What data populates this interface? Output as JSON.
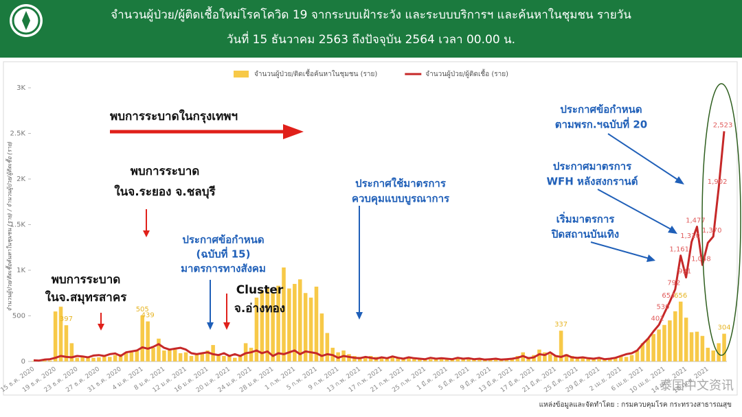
{
  "chart_data": {
    "type": "combo",
    "title": [
      "จำนวนผู้ป่วย/ผู้ติดเชื้อใหม่โรคโควิด 19 จากระบบเฝ้าระวัง และระบบบริการฯ และค้นหาในชุมชน รายวัน",
      "วันที่ 15 ธันวาคม 2563 ถึงปัจจุบัน 2564 เวลา 00.00 น."
    ],
    "ylabel": "จำนวนผู้ป่วย/ติดเชื้อค้นหาในชุมชน (ราย) / จำนวนผู้ป่วย/ผู้ติดเชื้อ (ราย)",
    "source": "แหล่งข้อมูลและจัดทำโดย : กรมควบคุมโรค กระทรวงสาธารณสุข",
    "watermark": "泰国中文资讯",
    "annotations": [
      [
        "พบการระบาดในกรุงเทพฯ"
      ],
      [
        "พบการระบาด",
        "ในจ.ระยอง จ.ชลบุรี"
      ],
      [
        "พบการระบาด",
        "ในจ.สมุทรสาคร"
      ],
      [
        "ประกาศข้อกำหนด",
        "(ฉบับที่ 15)",
        "มาตรการทางสังคม"
      ],
      [
        "Cluster",
        "จ.อ่างทอง"
      ],
      [
        "ประกาศใช้มาตรการ",
        "ควบคุมแบบบูรณาการ"
      ],
      [
        "ประกาศข้อกำหนด",
        "ตามพรก.ฯฉบับที่ 20"
      ],
      [
        "ประกาศมาตรการ",
        "WFH หลังสงกรานต์"
      ],
      [
        "เริ่มมาตรการ",
        "ปิดสถานบันเทิง"
      ]
    ],
    "categories": [
      "15 ธ.ค. 2020",
      null,
      null,
      null,
      "19 ธ.ค. 2020",
      null,
      null,
      null,
      "23 ธ.ค. 2020",
      null,
      null,
      null,
      "27 ธ.ค. 2020",
      null,
      null,
      null,
      "31 ธ.ค. 2020",
      null,
      null,
      null,
      "4 ม.ค. 2021",
      null,
      null,
      null,
      "8 ม.ค. 2021",
      null,
      null,
      null,
      "12 ม.ค. 2021",
      null,
      null,
      null,
      "16 ม.ค. 2021",
      null,
      null,
      null,
      "20 ม.ค. 2021",
      null,
      null,
      null,
      "24 ม.ค. 2021",
      null,
      null,
      null,
      "28 ม.ค. 2021",
      null,
      null,
      null,
      "1 ก.พ. 2021",
      null,
      null,
      null,
      "5 ก.พ. 2021",
      null,
      null,
      null,
      "9 ก.พ. 2021",
      null,
      null,
      null,
      "13 ก.พ. 2021",
      null,
      null,
      null,
      "17 ก.พ. 2021",
      null,
      null,
      null,
      "21 ก.พ. 2021",
      null,
      null,
      null,
      "25 ก.พ. 2021",
      null,
      null,
      null,
      "1 มี.ค. 2021",
      null,
      null,
      null,
      "5 มี.ค. 2021",
      null,
      null,
      null,
      "9 มี.ค. 2021",
      null,
      null,
      null,
      "13 มี.ค. 2021",
      null,
      null,
      null,
      "17 มี.ค. 2021",
      null,
      null,
      null,
      "21 มี.ค. 2021",
      null,
      null,
      null,
      "25 มี.ค. 2021",
      null,
      null,
      null,
      "29 มี.ค. 2021",
      null,
      null,
      null,
      "2 เม.ย. 2021",
      null,
      null,
      null,
      "6 เม.ย. 2021",
      null,
      null,
      null,
      "10 เม.ย. 2021",
      null,
      null,
      null,
      "14 เม.ย. 2021",
      null,
      null,
      null,
      "18 เม.ย. 2021",
      null,
      null,
      null
    ],
    "series": [
      {
        "name": "จำนวนผู้ป่วย/ติดเชื้อค้นหาในชุมชน (ราย)",
        "type": "bar",
        "color": "#f7c948",
        "label_color": "#e6b422",
        "values": [
          5,
          5,
          10,
          10,
          548,
          600,
          397,
          200,
          40,
          60,
          50,
          40,
          45,
          60,
          50,
          70,
          80,
          90,
          100,
          120,
          505,
          439,
          150,
          250,
          120,
          140,
          130,
          90,
          100,
          60,
          80,
          90,
          120,
          180,
          80,
          60,
          70,
          40,
          60,
          200,
          150,
          700,
          780,
          800,
          750,
          830,
          1030,
          800,
          850,
          900,
          750,
          700,
          820,
          526,
          312,
          150,
          100,
          120,
          80,
          60,
          50,
          40,
          60,
          50,
          40,
          45,
          50,
          40,
          35,
          40,
          30,
          35,
          30,
          25,
          40,
          30,
          30,
          25,
          35,
          30,
          25,
          30,
          20,
          25,
          30,
          20,
          25,
          20,
          30,
          60,
          100,
          50,
          70,
          130,
          100,
          80,
          60,
          337,
          80,
          60,
          45,
          40,
          30,
          25,
          30,
          20,
          25,
          40,
          60,
          50,
          70,
          120,
          200,
          250,
          300,
          350,
          400,
          450,
          550,
          656,
          480,
          320,
          326,
          280,
          150,
          120,
          200,
          304
        ],
        "value_labels": [
          null,
          null,
          null,
          null,
          null,
          null,
          "397",
          null,
          null,
          null,
          null,
          null,
          null,
          null,
          null,
          null,
          null,
          null,
          null,
          null,
          "505",
          "439",
          null,
          null,
          null,
          null,
          null,
          null,
          null,
          null,
          null,
          null,
          null,
          null,
          null,
          null,
          null,
          null,
          null,
          null,
          null,
          null,
          null,
          null,
          null,
          null,
          null,
          null,
          null,
          null,
          null,
          null,
          null,
          null,
          null,
          null,
          null,
          null,
          null,
          null,
          null,
          null,
          null,
          null,
          null,
          null,
          null,
          null,
          null,
          null,
          null,
          null,
          null,
          null,
          null,
          null,
          null,
          null,
          null,
          null,
          null,
          null,
          null,
          null,
          null,
          null,
          null,
          null,
          null,
          null,
          null,
          null,
          null,
          null,
          null,
          null,
          null,
          "337",
          null,
          null,
          null,
          null,
          null,
          null,
          null,
          null,
          null,
          null,
          null,
          null,
          null,
          null,
          null,
          null,
          null,
          null,
          null,
          null,
          null,
          "656",
          null,
          null,
          null,
          null,
          null,
          null,
          null,
          "304"
        ]
      },
      {
        "name": "จำนวนผู้ป่วย/ผู้ติดเชื้อ (ราย)",
        "type": "line",
        "color": "#c62828",
        "label_color": "#e05a5a",
        "values": [
          12,
          10,
          20,
          25,
          40,
          60,
          50,
          45,
          60,
          55,
          45,
          65,
          70,
          60,
          80,
          88,
          60,
          100,
          110,
          120,
          155,
          140,
          160,
          190,
          150,
          130,
          140,
          150,
          130,
          90,
          80,
          90,
          100,
          80,
          70,
          90,
          60,
          80,
          60,
          90,
          100,
          120,
          90,
          110,
          60,
          90,
          80,
          100,
          120,
          80,
          110,
          100,
          90,
          60,
          80,
          70,
          40,
          60,
          50,
          40,
          35,
          50,
          40,
          30,
          45,
          35,
          55,
          40,
          30,
          45,
          35,
          30,
          25,
          40,
          30,
          35,
          30,
          25,
          40,
          30,
          35,
          25,
          30,
          20,
          25,
          30,
          20,
          25,
          30,
          40,
          60,
          35,
          45,
          80,
          70,
          100,
          60,
          50,
          70,
          45,
          40,
          45,
          35,
          30,
          40,
          25,
          30,
          40,
          60,
          80,
          90,
          120,
          190,
          250,
          330,
          401,
          530,
          654,
          792,
          1161,
          921,
          1310,
          1477,
          1058,
          1300,
          1370,
          1902,
          2523
        ],
        "value_labels": [
          null,
          null,
          null,
          null,
          null,
          null,
          null,
          null,
          null,
          null,
          null,
          null,
          null,
          null,
          null,
          null,
          null,
          null,
          null,
          null,
          null,
          null,
          null,
          null,
          null,
          null,
          null,
          null,
          null,
          null,
          null,
          null,
          null,
          null,
          null,
          null,
          null,
          null,
          null,
          null,
          null,
          null,
          null,
          null,
          null,
          null,
          null,
          null,
          null,
          null,
          null,
          null,
          null,
          null,
          null,
          null,
          null,
          null,
          null,
          null,
          null,
          null,
          null,
          null,
          null,
          null,
          null,
          null,
          null,
          null,
          null,
          null,
          null,
          null,
          null,
          null,
          null,
          null,
          null,
          null,
          null,
          null,
          null,
          null,
          null,
          null,
          null,
          null,
          null,
          null,
          null,
          null,
          null,
          null,
          null,
          null,
          null,
          null,
          null,
          null,
          null,
          null,
          null,
          null,
          null,
          null,
          null,
          null,
          null,
          null,
          null,
          null,
          null,
          null,
          null,
          "401",
          "530",
          "654",
          "792",
          "1,161",
          "921",
          "1,310",
          "1,477",
          "1,058",
          null,
          "1,370",
          "1,902",
          "2,523"
        ]
      }
    ],
    "ylim": [
      0,
      3000
    ],
    "yticks": [
      0,
      500,
      {
        "value": 1000,
        "label": "1K"
      },
      {
        "value": 1500,
        "label": "1.5K"
      },
      {
        "value": 2000,
        "label": "2K"
      },
      {
        "value": 2500,
        "label": "2.5K"
      },
      {
        "value": 3000,
        "label": "3K"
      }
    ],
    "grid": false,
    "legend": "top"
  }
}
